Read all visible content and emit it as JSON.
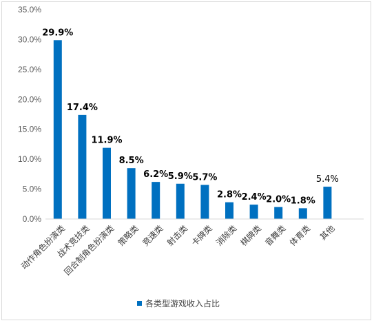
{
  "chart_data": {
    "type": "bar",
    "categories": [
      "动作角色扮演类",
      "战术竞技类",
      "回合制角色扮演类",
      "策略类",
      "竞速类",
      "射击类",
      "卡牌类",
      "消除类",
      "棋牌类",
      "音舞类",
      "体育类",
      "其他"
    ],
    "series": [
      {
        "name": "各类型游戏收入占比",
        "values": [
          29.9,
          17.4,
          11.9,
          8.5,
          6.2,
          5.9,
          5.7,
          2.8,
          2.4,
          2.0,
          1.8,
          5.4
        ]
      }
    ],
    "data_labels": [
      "29.9%",
      "17.4%",
      "11.9%",
      "8.5%",
      "6.2%",
      "5.9%",
      "5.7%",
      "2.8%",
      "2.4%",
      "2.0%",
      "1.8%",
      "5.4%"
    ],
    "label_bold": [
      true,
      true,
      true,
      true,
      true,
      true,
      true,
      true,
      true,
      true,
      true,
      false
    ],
    "yticks": [
      "0.0%",
      "5.0%",
      "10.0%",
      "15.0%",
      "20.0%",
      "25.0%",
      "30.0%",
      "35.0%"
    ],
    "ylim": [
      0,
      35
    ],
    "bar_color": "#0070c0",
    "legend_position": "bottom",
    "grid": false
  }
}
